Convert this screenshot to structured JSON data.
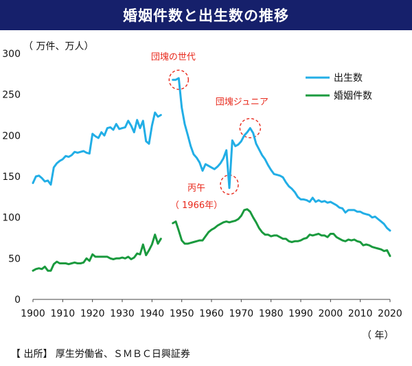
{
  "banner": {
    "title": "婚姻件数と出生数の推移"
  },
  "source": "【 出所】 厚生労働省、ＳＭＢＣ日興証券",
  "colors": {
    "banner_bg": "#16206b",
    "births": "#22aee6",
    "marriages": "#1a9a3e",
    "annotation": "#e8281b"
  },
  "chart_data": {
    "type": "line",
    "unit_label": "（ 万件、万人）",
    "x_unit_label": "（ 年）",
    "xlim": [
      1900,
      2020
    ],
    "ylim": [
      0,
      300
    ],
    "x_ticks": [
      1900,
      1910,
      1920,
      1930,
      1940,
      1950,
      1960,
      1970,
      1980,
      1990,
      2000,
      2010,
      2020
    ],
    "y_ticks": [
      0,
      50,
      100,
      150,
      200,
      250,
      300
    ],
    "grid": false,
    "legend_position": "top-right",
    "series": [
      {
        "name": "出生数",
        "color": "#22aee6",
        "segments": [
          [
            [
              1900,
              142
            ],
            [
              1901,
              150
            ],
            [
              1902,
              151
            ],
            [
              1903,
              148
            ],
            [
              1904,
              144
            ],
            [
              1905,
              145
            ],
            [
              1906,
              140
            ],
            [
              1907,
              161
            ],
            [
              1908,
              166
            ],
            [
              1909,
              169
            ],
            [
              1910,
              171
            ],
            [
              1911,
              175
            ],
            [
              1912,
              174
            ],
            [
              1913,
              176
            ],
            [
              1914,
              180
            ],
            [
              1915,
              179
            ],
            [
              1916,
              180
            ],
            [
              1917,
              181
            ],
            [
              1918,
              179
            ],
            [
              1919,
              178
            ],
            [
              1920,
              202
            ],
            [
              1921,
              199
            ],
            [
              1922,
              197
            ],
            [
              1923,
              204
            ],
            [
              1924,
              200
            ],
            [
              1925,
              209
            ],
            [
              1926,
              210
            ],
            [
              1927,
              207
            ],
            [
              1928,
              214
            ],
            [
              1929,
              208
            ],
            [
              1930,
              209
            ],
            [
              1931,
              210
            ],
            [
              1932,
              218
            ],
            [
              1933,
              212
            ],
            [
              1934,
              204
            ],
            [
              1935,
              219
            ],
            [
              1936,
              209
            ],
            [
              1937,
              218
            ],
            [
              1938,
              193
            ],
            [
              1939,
              190
            ],
            [
              1940,
              212
            ],
            [
              1941,
              228
            ],
            [
              1942,
              223
            ],
            [
              1943,
              225
            ]
          ],
          [
            [
              1947,
              268
            ],
            [
              1948,
              268
            ],
            [
              1949,
              270
            ],
            [
              1950,
              234
            ],
            [
              1951,
              214
            ],
            [
              1952,
              201
            ],
            [
              1953,
              187
            ],
            [
              1954,
              177
            ],
            [
              1955,
              173
            ],
            [
              1956,
              167
            ],
            [
              1957,
              157
            ],
            [
              1958,
              165
            ],
            [
              1959,
              163
            ],
            [
              1960,
              161
            ],
            [
              1961,
              159
            ],
            [
              1962,
              162
            ],
            [
              1963,
              166
            ],
            [
              1964,
              172
            ],
            [
              1965,
              182
            ],
            [
              1966,
              136
            ],
            [
              1967,
              194
            ],
            [
              1968,
              187
            ],
            [
              1969,
              189
            ],
            [
              1970,
              193
            ],
            [
              1971,
              200
            ],
            [
              1972,
              204
            ],
            [
              1973,
              209
            ],
            [
              1974,
              203
            ],
            [
              1975,
              190
            ],
            [
              1976,
              183
            ],
            [
              1977,
              176
            ],
            [
              1978,
              171
            ],
            [
              1979,
              164
            ],
            [
              1980,
              158
            ],
            [
              1981,
              153
            ],
            [
              1982,
              152
            ],
            [
              1983,
              151
            ],
            [
              1984,
              149
            ],
            [
              1985,
              143
            ],
            [
              1986,
              138
            ],
            [
              1987,
              135
            ],
            [
              1988,
              131
            ],
            [
              1989,
              125
            ],
            [
              1990,
              122
            ],
            [
              1991,
              122
            ],
            [
              1992,
              121
            ],
            [
              1993,
              119
            ],
            [
              1994,
              124
            ],
            [
              1995,
              119
            ],
            [
              1996,
              121
            ],
            [
              1997,
              119
            ],
            [
              1998,
              120
            ],
            [
              1999,
              118
            ],
            [
              2000,
              119
            ],
            [
              2001,
              117
            ],
            [
              2002,
              115
            ],
            [
              2003,
              112
            ],
            [
              2004,
              111
            ],
            [
              2005,
              106
            ],
            [
              2006,
              109
            ],
            [
              2007,
              109
            ],
            [
              2008,
              109
            ],
            [
              2009,
              107
            ],
            [
              2010,
              107
            ],
            [
              2011,
              105
            ],
            [
              2012,
              104
            ],
            [
              2013,
              103
            ],
            [
              2014,
              100
            ],
            [
              2015,
              101
            ],
            [
              2016,
              98
            ],
            [
              2017,
              95
            ],
            [
              2018,
              92
            ],
            [
              2019,
              87
            ],
            [
              2020,
              84
            ]
          ]
        ]
      },
      {
        "name": "婚姻件数",
        "color": "#1a9a3e",
        "segments": [
          [
            [
              1900,
              35
            ],
            [
              1901,
              37
            ],
            [
              1902,
              38
            ],
            [
              1903,
              37
            ],
            [
              1904,
              40
            ],
            [
              1905,
              35
            ],
            [
              1906,
              35
            ],
            [
              1907,
              43
            ],
            [
              1908,
              46
            ],
            [
              1909,
              44
            ],
            [
              1910,
              44
            ],
            [
              1911,
              44
            ],
            [
              1912,
              43
            ],
            [
              1913,
              44
            ],
            [
              1914,
              45
            ],
            [
              1915,
              44
            ],
            [
              1916,
              44
            ],
            [
              1917,
              45
            ],
            [
              1918,
              50
            ],
            [
              1919,
              47
            ],
            [
              1920,
              55
            ],
            [
              1921,
              52
            ],
            [
              1922,
              52
            ],
            [
              1923,
              52
            ],
            [
              1924,
              52
            ],
            [
              1925,
              52
            ],
            [
              1926,
              50
            ],
            [
              1927,
              49
            ],
            [
              1928,
              50
            ],
            [
              1929,
              50
            ],
            [
              1930,
              51
            ],
            [
              1931,
              50
            ],
            [
              1932,
              52
            ],
            [
              1933,
              49
            ],
            [
              1934,
              51
            ],
            [
              1935,
              56
            ],
            [
              1936,
              55
            ],
            [
              1937,
              67
            ],
            [
              1938,
              54
            ],
            [
              1939,
              60
            ],
            [
              1940,
              67
            ],
            [
              1941,
              79
            ],
            [
              1942,
              68
            ],
            [
              1943,
              74
            ]
          ],
          [
            [
              1947,
              93
            ],
            [
              1948,
              95
            ],
            [
              1949,
              84
            ],
            [
              1950,
              72
            ],
            [
              1951,
              68
            ],
            [
              1952,
              68
            ],
            [
              1953,
              69
            ],
            [
              1954,
              70
            ],
            [
              1955,
              71
            ],
            [
              1956,
              72
            ],
            [
              1957,
              72
            ],
            [
              1958,
              77
            ],
            [
              1959,
              82
            ],
            [
              1960,
              85
            ],
            [
              1961,
              87
            ],
            [
              1962,
              90
            ],
            [
              1963,
              92
            ],
            [
              1964,
              94
            ],
            [
              1965,
              95
            ],
            [
              1966,
              94
            ],
            [
              1967,
              95
            ],
            [
              1968,
              96
            ],
            [
              1969,
              98
            ],
            [
              1970,
              102
            ],
            [
              1971,
              109
            ],
            [
              1972,
              110
            ],
            [
              1973,
              107
            ],
            [
              1974,
              100
            ],
            [
              1975,
              94
            ],
            [
              1976,
              87
            ],
            [
              1977,
              82
            ],
            [
              1978,
              79
            ],
            [
              1979,
              79
            ],
            [
              1980,
              77
            ],
            [
              1981,
              78
            ],
            [
              1982,
              78
            ],
            [
              1983,
              76
            ],
            [
              1984,
              74
            ],
            [
              1985,
              74
            ],
            [
              1986,
              71
            ],
            [
              1987,
              70
            ],
            [
              1988,
              71
            ],
            [
              1989,
              71
            ],
            [
              1990,
              72
            ],
            [
              1991,
              74
            ],
            [
              1992,
              75
            ],
            [
              1993,
              79
            ],
            [
              1994,
              78
            ],
            [
              1995,
              79
            ],
            [
              1996,
              80
            ],
            [
              1997,
              78
            ],
            [
              1998,
              78
            ],
            [
              1999,
              76
            ],
            [
              2000,
              80
            ],
            [
              2001,
              80
            ],
            [
              2002,
              76
            ],
            [
              2003,
              74
            ],
            [
              2004,
              72
            ],
            [
              2005,
              71
            ],
            [
              2006,
              73
            ],
            [
              2007,
              72
            ],
            [
              2008,
              73
            ],
            [
              2009,
              71
            ],
            [
              2010,
              70
            ],
            [
              2011,
              66
            ],
            [
              2012,
              67
            ],
            [
              2013,
              66
            ],
            [
              2014,
              64
            ],
            [
              2015,
              63
            ],
            [
              2016,
              62
            ],
            [
              2017,
              61
            ],
            [
              2018,
              59
            ],
            [
              2019,
              60
            ],
            [
              2020,
              53
            ]
          ]
        ]
      }
    ],
    "annotations": [
      {
        "text": "団塊の世代",
        "x": 1949,
        "y": 268
      },
      {
        "text": "団塊ジュニア",
        "x": 1973,
        "y": 209
      },
      {
        "text": "丙午",
        "x": 1966,
        "y": 140
      },
      {
        "text": "（ 1966年）",
        "x": 1966,
        "y": 140
      }
    ]
  }
}
